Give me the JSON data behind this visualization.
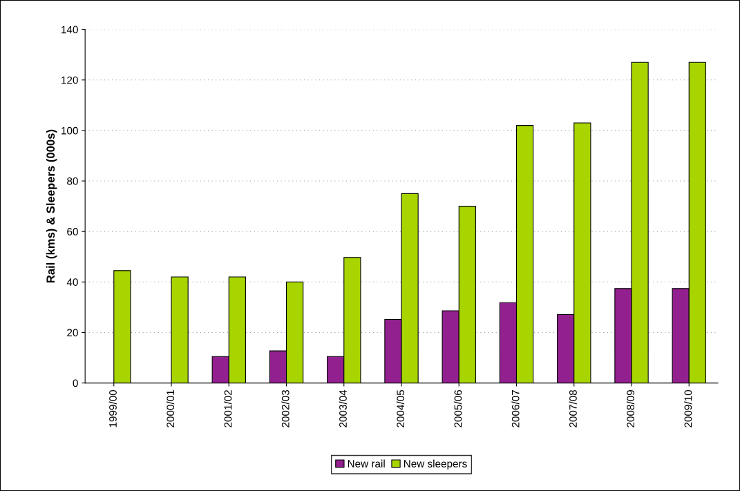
{
  "chart_data": {
    "type": "bar",
    "ylabel": "Rail (kms) & Sleepers (000s)",
    "categories": [
      "1999/00",
      "2000/01",
      "2001/02",
      "2002/03",
      "2003/04",
      "2004/05",
      "2005/06",
      "2006/07",
      "2007/08",
      "2008/09",
      "2009/10"
    ],
    "series": [
      {
        "name": "New rail",
        "color": "#93208f",
        "values": [
          null,
          null,
          10.5,
          12.7,
          10.5,
          25.2,
          28.6,
          31.8,
          27.1,
          37.4,
          37.4
        ]
      },
      {
        "name": "New sleepers",
        "color": "#a8d400",
        "values": [
          44.5,
          42,
          42,
          40,
          49.7,
          75,
          70,
          102,
          103,
          127,
          127
        ]
      }
    ],
    "ylim": [
      0,
      140
    ],
    "yticks": [
      0,
      20,
      40,
      60,
      80,
      100,
      120,
      140
    ],
    "grid": "y",
    "legend": "bottom"
  }
}
